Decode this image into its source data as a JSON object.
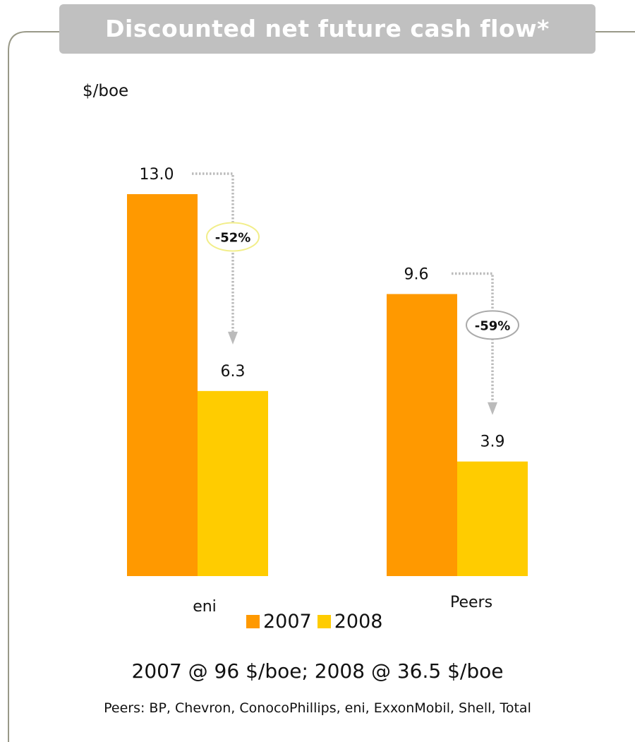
{
  "title": "Discounted net future cash flow*",
  "unit_label": "$/boe",
  "legend": {
    "items": [
      {
        "label": "2007",
        "color": "#ff9900"
      },
      {
        "label": "2008",
        "color": "#ffcc00"
      }
    ]
  },
  "note": "2007 @ 96 $/boe; 2008 @ 36.5 $/boe",
  "source": "Peers: BP, Chevron, ConocoPhillips, eni, ExxonMobil, Shell, Total",
  "colors": {
    "frame": "#999988",
    "title_bg": "#c0c0c0",
    "bar_2007": "#ff9900",
    "bar_2008": "#ffcc00",
    "arrow": "#bbbbbb",
    "eni_ellipse_border": "#f2ee8a",
    "peers_ellipse_border": "#aaaaaa"
  },
  "chart_data": {
    "type": "bar",
    "categories": [
      "eni",
      "Peers"
    ],
    "series": [
      {
        "name": "2007",
        "values": [
          13.0,
          9.6
        ],
        "labels": [
          "13.0",
          "9.6"
        ]
      },
      {
        "name": "2008",
        "values": [
          6.3,
          3.9
        ],
        "labels": [
          "6.3",
          "3.9"
        ]
      }
    ],
    "ylabel": "$/boe",
    "ylim": [
      0,
      13.0
    ],
    "annotations": [
      {
        "category": "eni",
        "text": "-52%"
      },
      {
        "category": "Peers",
        "text": "-59%"
      }
    ],
    "grid": false,
    "legend_position": "bottom"
  }
}
